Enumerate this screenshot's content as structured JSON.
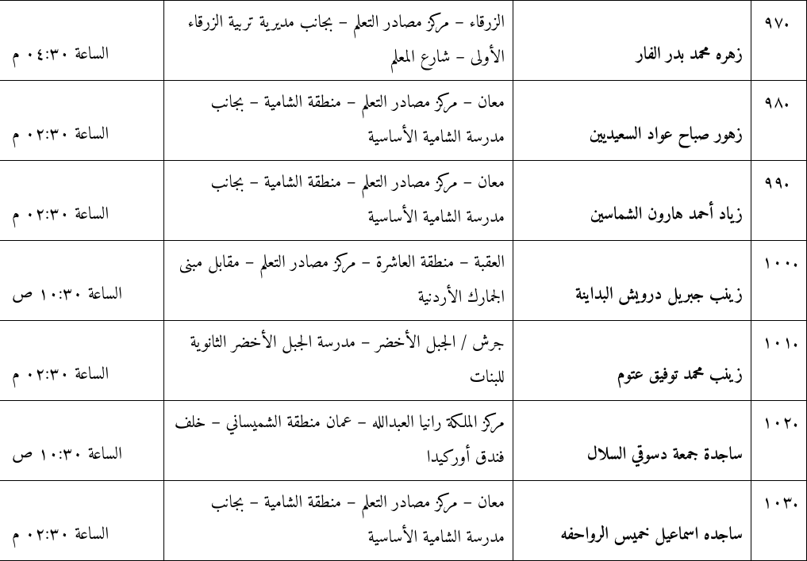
{
  "rows": [
    {
      "idx": ".٩٧",
      "name": "زهره محمد بدر الفار",
      "loc": "الزرقاء – مركز مصادر التعلم – بجانب مديرية تربية الزرقاء الأولى – شارع المعلم",
      "time": "الساعة ٠٤:٣٠ م"
    },
    {
      "idx": ".٩٨",
      "name": "زهور صباح عواد السعيديين",
      "loc": "معان – مركز مصادر التعلم – منطقة الشامية – بجانب مدرسة الشامية الأساسية",
      "time": "الساعة ٠٢:٣٠ م"
    },
    {
      "idx": ".٩٩",
      "name": "زياد أحمد هارون الشماسين",
      "loc": "معان – مركز مصادر التعلم – منطقة الشامية – بجانب مدرسة الشامية الأساسية",
      "time": "الساعة ٠٢:٣٠ م"
    },
    {
      "idx": ".١٠٠",
      "name": "زينب جبريل درويش البداينة",
      "loc": "العقبة – منطقة العاشرة – مركز مصادر التعلم – مقابل مبنى الجمارك الأردنية",
      "time": "الساعة ١٠:٣٠ ص"
    },
    {
      "idx": ".١٠١",
      "name": "زينب محمد توفيق عتوم",
      "loc": "جرش / الجبل الأخضر – مدرسة الجبل الأخضر الثانوية للبنات",
      "time": "الساعة ٠٢:٣٠ م"
    },
    {
      "idx": ".١٠٢",
      "name": "ساجدة جمعة دسوقي السلال",
      "loc": "مركز الملكة رانيا العبدالله – عمان منطقة الشميساني – خلف فندق أوركيدا",
      "time": "الساعة ١٠:٣٠ ص"
    },
    {
      "idx": ".١٠٣",
      "name": "ساجده اسماعيل خميس الرواحفه",
      "loc": "معان – مركز مصادر التعلم – منطقة الشامية – بجانب مدرسة الشامية الأساسية",
      "time": "الساعة ٠٢:٣٠ م"
    }
  ]
}
